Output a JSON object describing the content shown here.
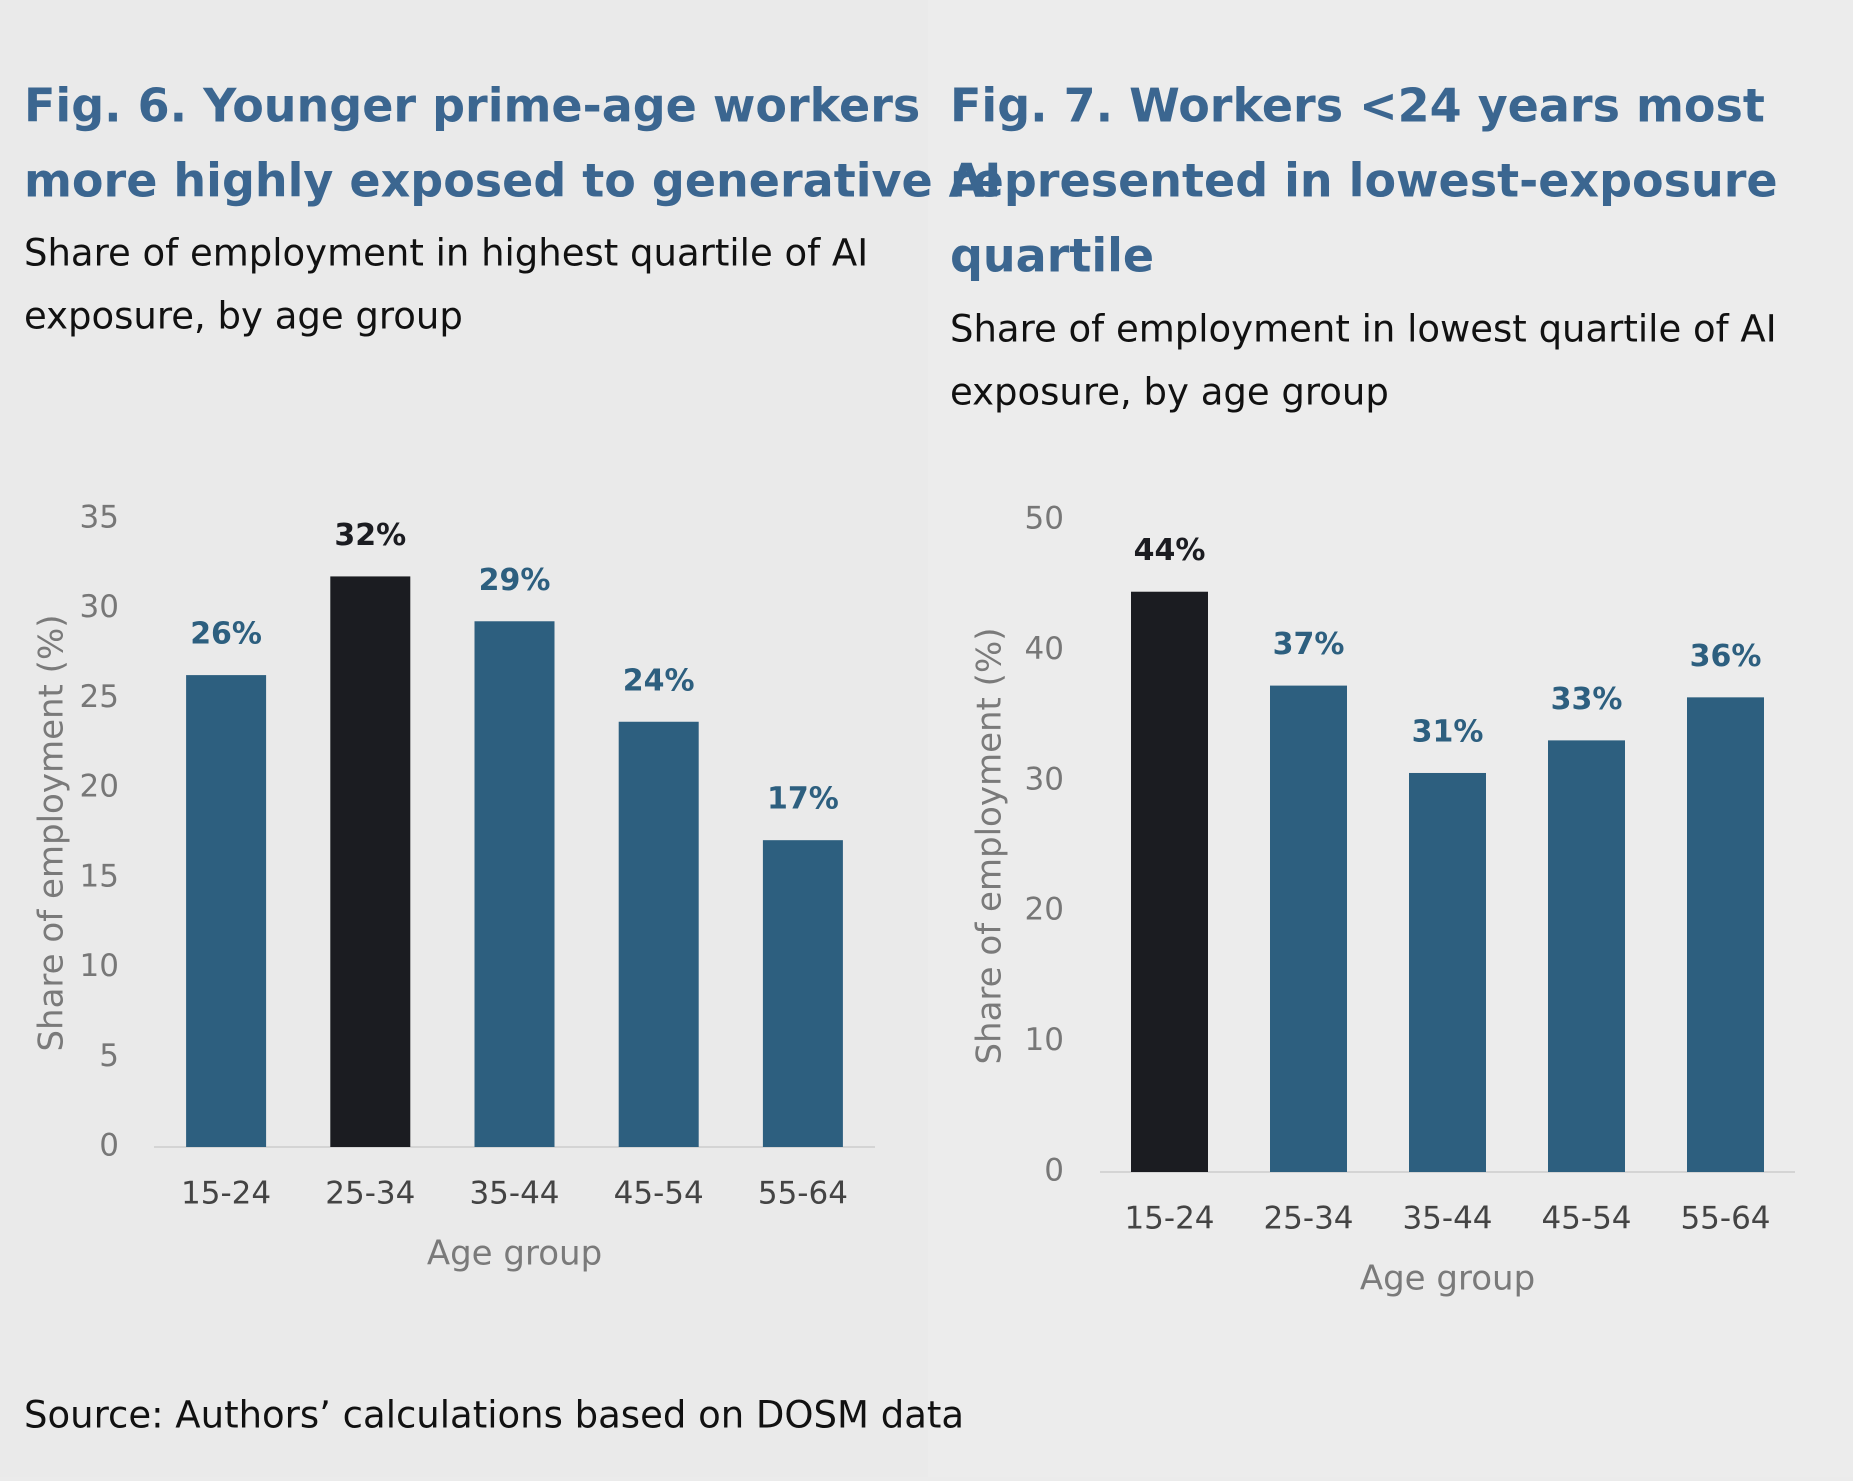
{
  "chart_data": [
    {
      "type": "bar",
      "title": [
        "Fig. 6. Younger prime-age workers",
        "more highly exposed to generative AI"
      ],
      "subtitle": [
        "Share of employment in highest quartile of AI",
        "exposure, by age group"
      ],
      "x_label": "Age group",
      "y_label": "Share of employment (%)",
      "categories": [
        "15-24",
        "25-34",
        "35-44",
        "45-54",
        "55-64"
      ],
      "values": [
        26.3,
        31.8,
        29.3,
        23.7,
        17.1
      ],
      "value_labels": [
        "26%",
        "32%",
        "29%",
        "24%",
        "17%"
      ],
      "colors": [
        "#2d5f7f",
        "#1b1c21",
        "#2d5f7f",
        "#2d5f7f",
        "#2d5f7f"
      ],
      "ylim": [
        0,
        35
      ],
      "yticks": [
        0,
        5,
        10,
        15,
        20,
        25,
        30,
        35
      ]
    },
    {
      "type": "bar",
      "title": [
        "Fig. 7. Workers <24 years most",
        "represented in lowest-exposure",
        "quartile"
      ],
      "subtitle": [
        "Share of employment in lowest quartile of AI",
        "exposure, by age group"
      ],
      "x_label": "Age group",
      "y_label": "Share of employment (%)",
      "categories": [
        "15-24",
        "25-34",
        "35-44",
        "45-54",
        "55-64"
      ],
      "values": [
        44.5,
        37.3,
        30.6,
        33.1,
        36.4
      ],
      "value_labels": [
        "44%",
        "37%",
        "31%",
        "33%",
        "36%"
      ],
      "colors": [
        "#1b1c21",
        "#2d5f7f",
        "#2d5f7f",
        "#2d5f7f",
        "#2d5f7f"
      ],
      "ylim": [
        0,
        50
      ],
      "yticks": [
        0,
        10,
        20,
        30,
        40,
        50
      ]
    }
  ],
  "source": "Source: Authors’ calculations based on DOSM data"
}
